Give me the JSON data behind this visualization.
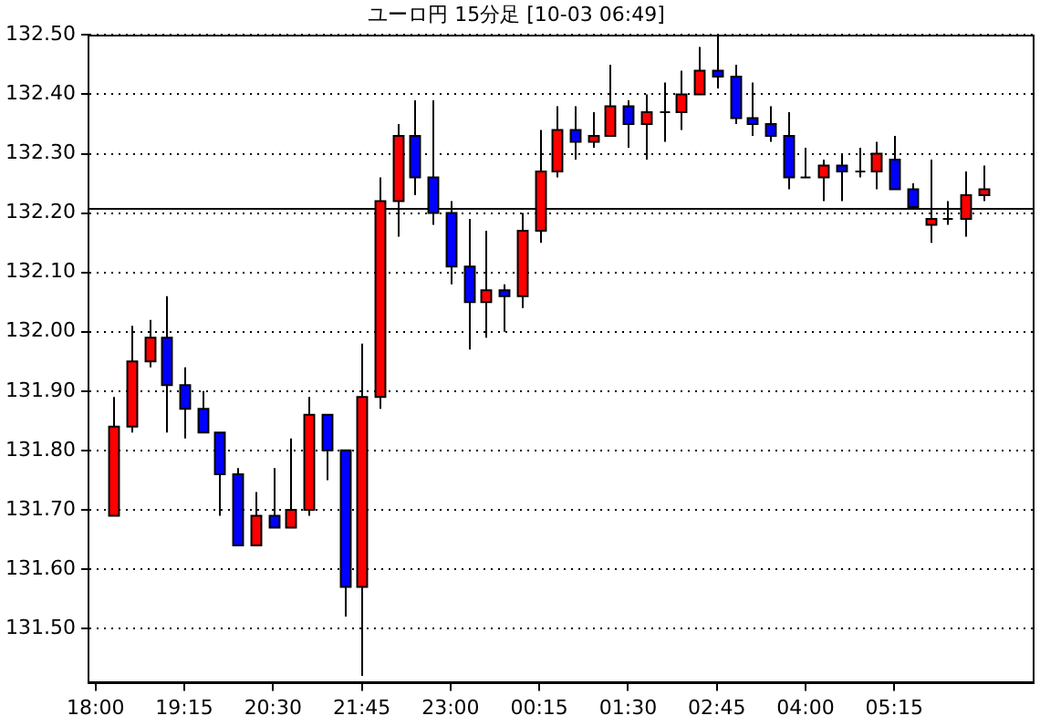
{
  "chart_data": {
    "type": "candlestick",
    "title": "ユーロ円 15分足 [10-03 06:49]",
    "x": [
      "--10-02T18:15",
      "--10-02T18:30",
      "--10-02T18:45",
      "--10-02T19:00",
      "--10-02T19:15",
      "--10-02T19:30",
      "--10-02T19:45",
      "--10-02T20:00",
      "--10-02T20:15",
      "--10-02T20:30",
      "--10-02T20:45",
      "--10-02T21:00",
      "--10-02T21:15",
      "--10-02T21:30",
      "--10-02T21:45",
      "--10-02T22:00",
      "--10-02T22:15",
      "--10-02T22:30",
      "--10-02T22:45",
      "--10-02T23:00",
      "--10-02T23:15",
      "--10-02T23:30",
      "--10-02T23:45",
      "--10-03T00:00",
      "--10-03T00:15",
      "--10-03T00:30",
      "--10-03T00:45",
      "--10-03T01:00",
      "--10-03T01:15",
      "--10-03T01:30",
      "--10-03T01:45",
      "--10-03T02:00",
      "--10-03T02:15",
      "--10-03T02:30",
      "--10-03T02:45",
      "--10-03T03:00",
      "--10-03T03:15",
      "--10-03T03:30",
      "--10-03T03:45",
      "--10-03T04:00",
      "--10-03T04:15",
      "--10-03T04:30",
      "--10-03T04:45",
      "--10-03T05:00",
      "--10-03T05:15",
      "--10-03T05:30",
      "--10-03T05:45",
      "--10-03T06:00",
      "--10-03T06:15",
      "--10-03T06:30"
    ],
    "ohlc": [
      [
        131.69,
        131.89,
        131.69,
        131.84
      ],
      [
        131.84,
        132.01,
        131.83,
        131.95
      ],
      [
        131.95,
        132.02,
        131.94,
        131.99
      ],
      [
        131.99,
        132.06,
        131.83,
        131.91
      ],
      [
        131.91,
        131.94,
        131.82,
        131.87
      ],
      [
        131.87,
        131.9,
        131.83,
        131.83
      ],
      [
        131.83,
        131.83,
        131.69,
        131.76
      ],
      [
        131.76,
        131.77,
        131.64,
        131.64
      ],
      [
        131.64,
        131.73,
        131.64,
        131.69
      ],
      [
        131.69,
        131.77,
        131.67,
        131.67
      ],
      [
        131.67,
        131.82,
        131.67,
        131.7
      ],
      [
        131.7,
        131.89,
        131.69,
        131.86
      ],
      [
        131.86,
        131.86,
        131.75,
        131.8
      ],
      [
        131.8,
        131.8,
        131.52,
        131.57
      ],
      [
        131.57,
        131.98,
        131.42,
        131.89
      ],
      [
        131.89,
        132.26,
        131.87,
        132.22
      ],
      [
        132.22,
        132.35,
        132.16,
        132.33
      ],
      [
        132.33,
        132.39,
        132.23,
        132.26
      ],
      [
        132.26,
        132.39,
        132.18,
        132.2
      ],
      [
        132.2,
        132.22,
        132.08,
        132.11
      ],
      [
        132.11,
        132.19,
        131.97,
        132.05
      ],
      [
        132.05,
        132.17,
        131.99,
        132.07
      ],
      [
        132.07,
        132.08,
        132.0,
        132.06
      ],
      [
        132.06,
        132.2,
        132.04,
        132.17
      ],
      [
        132.17,
        132.34,
        132.15,
        132.27
      ],
      [
        132.27,
        132.38,
        132.26,
        132.34
      ],
      [
        132.34,
        132.38,
        132.29,
        132.32
      ],
      [
        132.32,
        132.37,
        132.31,
        132.33
      ],
      [
        132.33,
        132.45,
        132.33,
        132.38
      ],
      [
        132.38,
        132.39,
        132.31,
        132.35
      ],
      [
        132.35,
        132.4,
        132.29,
        132.37
      ],
      [
        132.37,
        132.42,
        132.32,
        132.37
      ],
      [
        132.37,
        132.44,
        132.34,
        132.4
      ],
      [
        132.4,
        132.48,
        132.4,
        132.44
      ],
      [
        132.44,
        132.5,
        132.41,
        132.43
      ],
      [
        132.43,
        132.45,
        132.35,
        132.36
      ],
      [
        132.36,
        132.42,
        132.33,
        132.35
      ],
      [
        132.35,
        132.38,
        132.32,
        132.33
      ],
      [
        132.33,
        132.37,
        132.24,
        132.26
      ],
      [
        132.26,
        132.31,
        132.26,
        132.26
      ],
      [
        132.26,
        132.29,
        132.22,
        132.28
      ],
      [
        132.28,
        132.3,
        132.22,
        132.27
      ],
      [
        132.27,
        132.31,
        132.26,
        132.27
      ],
      [
        132.27,
        132.32,
        132.24,
        132.3
      ],
      [
        132.29,
        132.33,
        132.24,
        132.24
      ],
      [
        132.24,
        132.25,
        132.21,
        132.21
      ],
      [
        132.18,
        132.29,
        132.15,
        132.19
      ],
      [
        132.19,
        132.22,
        132.18,
        132.19
      ],
      [
        132.19,
        132.27,
        132.16,
        132.23
      ],
      [
        132.23,
        132.28,
        132.22,
        132.24
      ]
    ],
    "colors": [
      "#ff0000",
      "#ff0000",
      "#ff0000",
      "#0000ff",
      "#0000ff",
      "#0000ff",
      "#0000ff",
      "#0000ff",
      "#ff0000",
      "#0000ff",
      "#ff0000",
      "#ff0000",
      "#0000ff",
      "#0000ff",
      "#ff0000",
      "#ff0000",
      "#ff0000",
      "#0000ff",
      "#0000ff",
      "#0000ff",
      "#0000ff",
      "#ff0000",
      "#0000ff",
      "#ff0000",
      "#ff0000",
      "#ff0000",
      "#0000ff",
      "#ff0000",
      "#ff0000",
      "#0000ff",
      "#ff0000",
      "#000000",
      "#ff0000",
      "#ff0000",
      "#0000ff",
      "#0000ff",
      "#0000ff",
      "#0000ff",
      "#0000ff",
      "#000000",
      "#ff0000",
      "#0000ff",
      "#000000",
      "#ff0000",
      "#0000ff",
      "#0000ff",
      "#ff0000",
      "#000000",
      "#ff0000",
      "#ff0000"
    ],
    "xlim": [
      "--10-02T17:54",
      "--10-03T07:12"
    ],
    "xticks": [
      {
        "value": "--10-02T18:00",
        "label": "18:00"
      },
      {
        "value": "--10-02T19:15",
        "label": "19:15"
      },
      {
        "value": "--10-02T20:30",
        "label": "20:30"
      },
      {
        "value": "--10-02T21:45",
        "label": "21:45"
      },
      {
        "value": "--10-02T23:00",
        "label": "23:00"
      },
      {
        "value": "--10-03T00:15",
        "label": "00:15"
      },
      {
        "value": "--10-03T01:30",
        "label": "01:30"
      },
      {
        "value": "--10-03T02:45",
        "label": "02:45"
      },
      {
        "value": "--10-03T04:00",
        "label": "04:00"
      },
      {
        "value": "--10-03T05:15",
        "label": "05:15"
      }
    ],
    "ylim": [
      131.41,
      132.5
    ],
    "yticks": [
      {
        "value": 131.5,
        "label": "131.50"
      },
      {
        "value": 131.6,
        "label": "131.60"
      },
      {
        "value": 131.7,
        "label": "131.70"
      },
      {
        "value": 131.8,
        "label": "131.80"
      },
      {
        "value": 131.9,
        "label": "131.90"
      },
      {
        "value": 132.0,
        "label": "132.00"
      },
      {
        "value": 132.1,
        "label": "132.10"
      },
      {
        "value": 132.2,
        "label": "132.20"
      },
      {
        "value": 132.3,
        "label": "132.30"
      },
      {
        "value": 132.4,
        "label": "132.40"
      },
      {
        "value": 132.5,
        "label": "132.50"
      }
    ],
    "grid": "y",
    "ref_lines": [
      {
        "axis": "y",
        "value": 132.21,
        "color": "#000000",
        "line_style": "solid"
      }
    ]
  }
}
